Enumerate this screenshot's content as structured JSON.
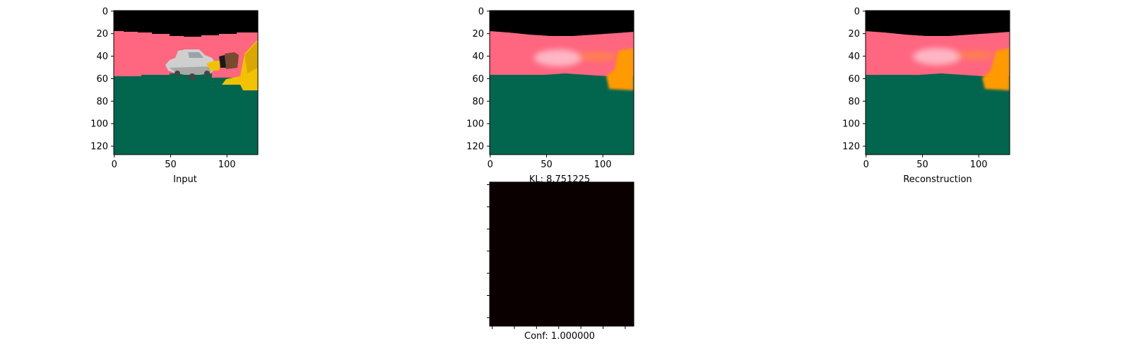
{
  "figure": {
    "background": "#ffffff"
  },
  "chart_data": [
    {
      "type": "image",
      "panel": "input",
      "xlabel": "Input",
      "ylabel": "",
      "xlim": [
        0,
        127
      ],
      "ylim": [
        127,
        0
      ],
      "xticks": [
        0,
        50,
        100
      ],
      "yticks": [
        0,
        20,
        40,
        60,
        80,
        100,
        120
      ],
      "colors": {
        "sky": "#000000",
        "wall": "#ff6680",
        "floor": "#02664e",
        "car": "#cfcfcf",
        "object": "#f2c200",
        "box": "#7a4a2e"
      }
    },
    {
      "type": "image",
      "panel": "decoded",
      "xlabel": "KL: 8.751225",
      "ylabel": "",
      "xlim": [
        0,
        127
      ],
      "ylim": [
        127,
        0
      ],
      "xticks": [
        0,
        50,
        100
      ],
      "yticks": [
        0,
        20,
        40,
        60,
        80,
        100,
        120
      ],
      "colors": {
        "sky": "#000000",
        "wall": "#ff6680",
        "floor": "#02664e",
        "blob": "#ffb5c3",
        "object": "#ff9a00"
      }
    },
    {
      "type": "image",
      "panel": "reconstruction",
      "xlabel": "Reconstruction",
      "ylabel": "",
      "xlim": [
        0,
        127
      ],
      "ylim": [
        127,
        0
      ],
      "xticks": [
        0,
        50,
        100
      ],
      "yticks": [
        0,
        20,
        40,
        60,
        80,
        100,
        120
      ],
      "colors": {
        "sky": "#000000",
        "wall": "#ff6680",
        "floor": "#02664e",
        "blob": "#ffb5c3",
        "object": "#ff9a00"
      }
    },
    {
      "type": "heatmap",
      "panel": "confidence",
      "xlabel": "Conf: 1.000000",
      "ylabel": "",
      "ticks_labeled": false,
      "value": 1.0,
      "fill_color": "#0b0000"
    }
  ]
}
